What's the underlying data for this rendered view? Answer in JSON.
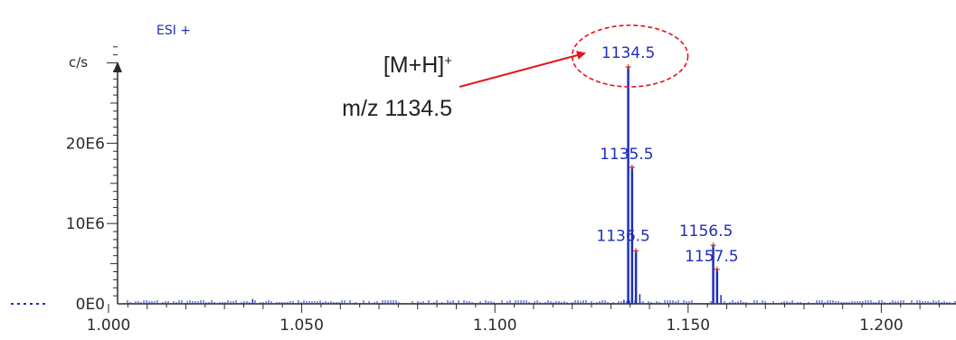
{
  "chart_data": {
    "type": "bar",
    "mode": "ESI +",
    "ylabel": "c/s",
    "x_ticks": [
      "1.000",
      "1.050",
      "1.100",
      "1.150",
      "1.200"
    ],
    "y_ticks": [
      "0E0",
      "10E6",
      "20E6"
    ],
    "xlim": [
      990,
      1215
    ],
    "ylim": [
      0,
      34000000
    ],
    "peaks": [
      {
        "mz": 1134.5,
        "intensity": 29500000,
        "label": "1134.5"
      },
      {
        "mz": 1135.5,
        "intensity": 17000000,
        "label": "1135.5"
      },
      {
        "mz": 1136.5,
        "intensity": 6600000,
        "label": "1136.5"
      },
      {
        "mz": 1156.5,
        "intensity": 7300000,
        "label": "1156.5"
      },
      {
        "mz": 1157.5,
        "intensity": 4300000,
        "label": "1157.5"
      }
    ],
    "minor_peaks": [
      {
        "mz": 1137.5,
        "intensity": 1200000
      },
      {
        "mz": 1158.5,
        "intensity": 1100000
      },
      {
        "mz": 1037.3,
        "intensity": 600000
      },
      {
        "mz": 1133.4,
        "intensity": 500000
      }
    ]
  },
  "annotation": {
    "line1_main": "[M+H]",
    "line1_sup": "+",
    "line2": "m/z 1134.5"
  },
  "colors": {
    "peaks": "#1f2fb8",
    "annotation_arrow": "#e5131c",
    "axis": "#2b2b2b"
  }
}
